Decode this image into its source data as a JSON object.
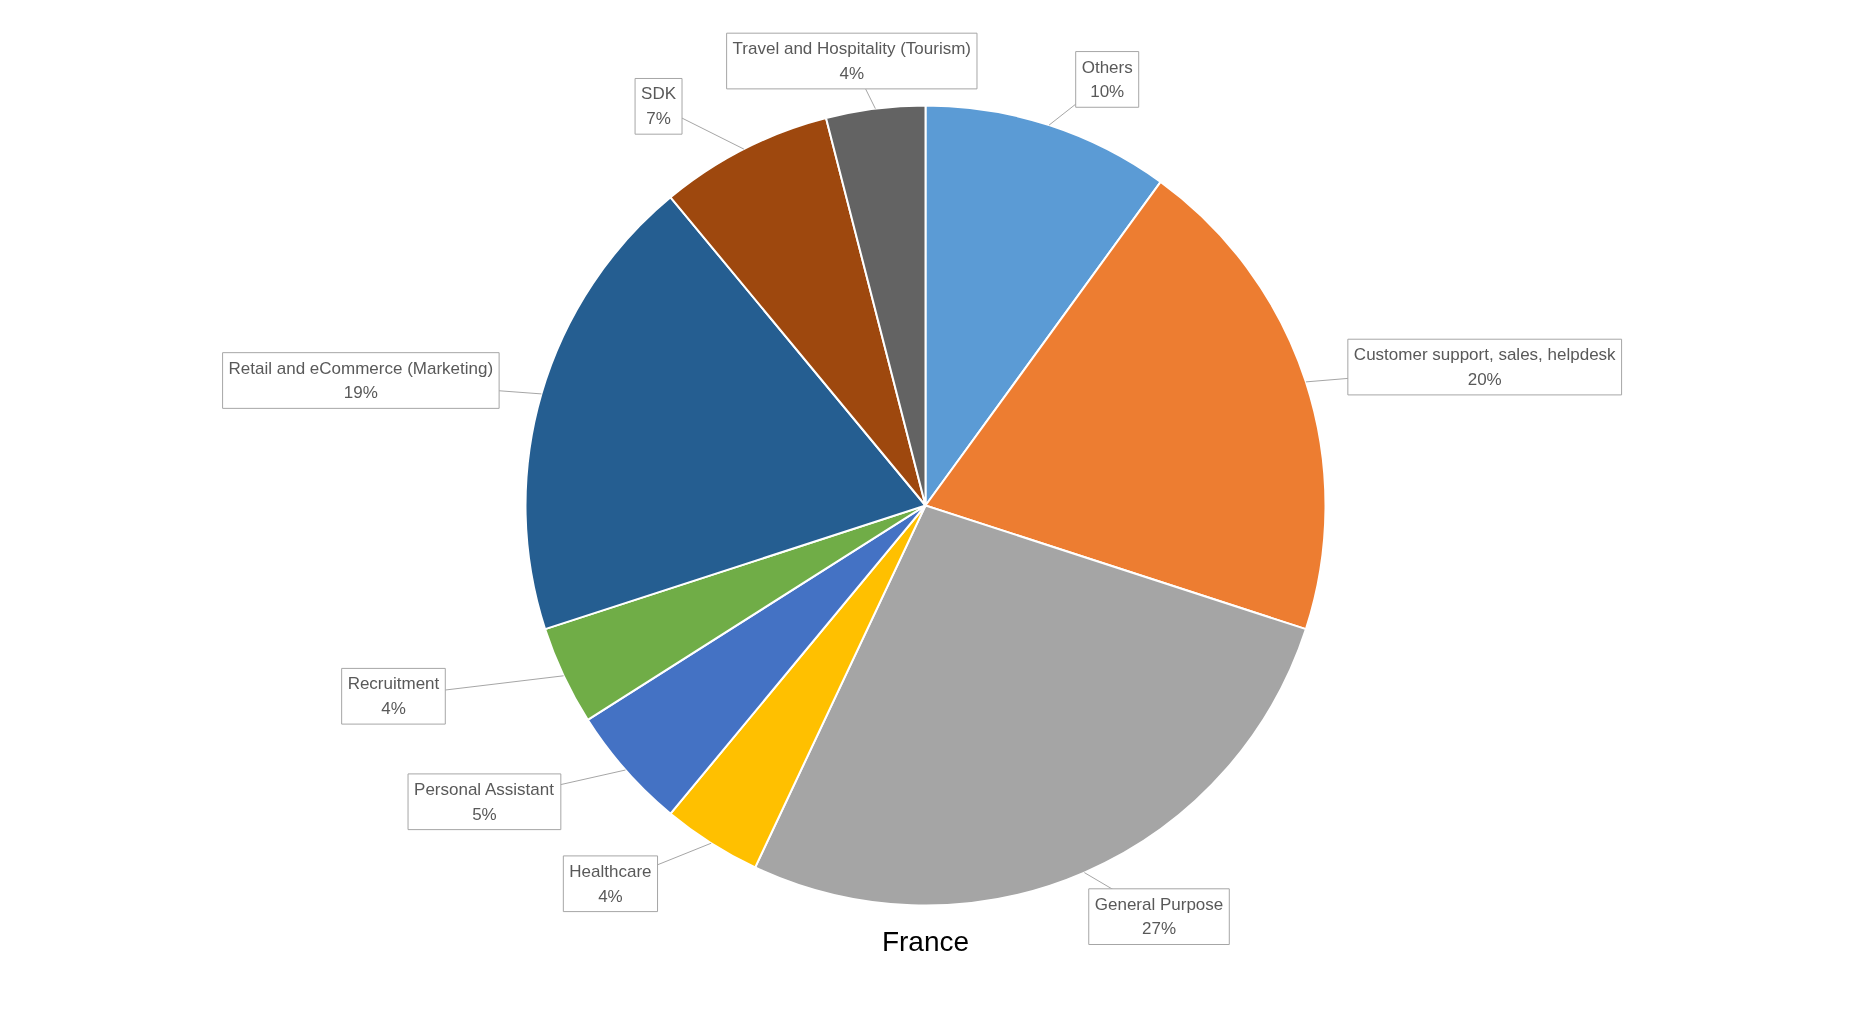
{
  "chart_data": {
    "type": "pie",
    "title": "France",
    "categories": [
      "Others",
      "Customer support, sales, helpdesk",
      "General Purpose",
      "Healthcare",
      "Personal Assistant",
      "Recruitment",
      "Retail and eCommerce (Marketing)",
      "SDK",
      "Travel and Hospitality (Tourism)"
    ],
    "values": [
      10,
      20,
      27,
      4,
      5,
      4,
      19,
      7,
      4
    ],
    "colors": [
      "#5b9bd5",
      "#ed7d31",
      "#a5a5a5",
      "#ffc000",
      "#4472c4",
      "#70ad47",
      "#255e91",
      "#9e480e",
      "#636363"
    ],
    "value_labels": [
      "10%",
      "20%",
      "27%",
      "4%",
      "5%",
      "4%",
      "19%",
      "7%",
      "4%"
    ]
  }
}
